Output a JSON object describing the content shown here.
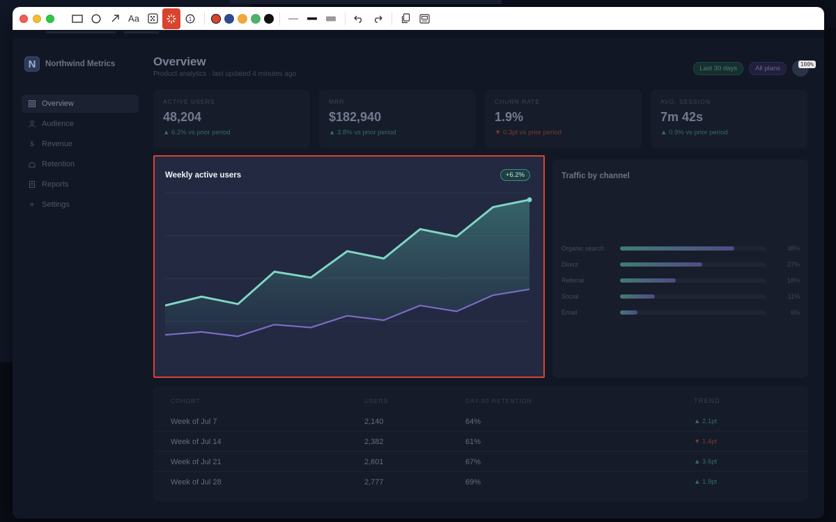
{
  "toolbar": {
    "colors": [
      "#d9442f",
      "#2f4a8c",
      "#f0a63a",
      "#4fb06b",
      "#111111"
    ],
    "zoom": "100%"
  },
  "app": {
    "brand": "Northwind Metrics",
    "nav": [
      {
        "label": "Overview",
        "icon": "grid-icon",
        "active": true
      },
      {
        "label": "Audience",
        "icon": "user-icon",
        "active": false
      },
      {
        "label": "Revenue",
        "icon": "dollar-icon",
        "active": false
      },
      {
        "label": "Retention",
        "icon": "retention-icon",
        "active": false
      },
      {
        "label": "Reports",
        "icon": "document-icon",
        "active": false
      },
      {
        "label": "Settings",
        "icon": "gear-icon",
        "active": false
      }
    ],
    "title": "Overview",
    "subtitle": "Product analytics · last updated 4 minutes ago",
    "range_pill": "Last 30 days",
    "plan_pill": "All plans",
    "kpis": [
      {
        "label": "ACTIVE USERS",
        "value": "48,204",
        "delta": "▲ 6.2% vs prior period",
        "dir": "up"
      },
      {
        "label": "MRR",
        "value": "$182,940",
        "delta": "▲ 3.8% vs prior period",
        "dir": "up"
      },
      {
        "label": "CHURN RATE",
        "value": "1.9%",
        "delta": "▼ 0.3pt vs prior period",
        "dir": "down"
      },
      {
        "label": "AVG. SESSION",
        "value": "7m 42s",
        "delta": "▲ 0.9% vs prior period",
        "dir": "up"
      }
    ],
    "chart": {
      "title": "Weekly active users",
      "badge": "+6.2%"
    },
    "traffic": {
      "title": "Traffic by channel",
      "channels": [
        {
          "name": "Organic search",
          "pct": "38%",
          "value": 0.78
        },
        {
          "name": "Direct",
          "pct": "27%",
          "value": 0.56
        },
        {
          "name": "Referral",
          "pct": "18%",
          "value": 0.38
        },
        {
          "name": "Social",
          "pct": "11%",
          "value": 0.24
        },
        {
          "name": "Email",
          "pct": "6%",
          "value": 0.12
        }
      ]
    },
    "cohort": {
      "headers": [
        "COHORT",
        "USERS",
        "DAY-30 RETENTION",
        "TREND"
      ],
      "rows": [
        {
          "cohort": "Week of Jul 7",
          "users": "2,140",
          "retention": "64%",
          "trend": "▲ 2.1pt",
          "dir": "up"
        },
        {
          "cohort": "Week of Jul 14",
          "users": "2,382",
          "retention": "61%",
          "trend": "▼ 1.4pt",
          "dir": "down"
        },
        {
          "cohort": "Week of Jul 21",
          "users": "2,601",
          "retention": "67%",
          "trend": "▲ 3.6pt",
          "dir": "up"
        },
        {
          "cohort": "Week of Jul 28",
          "users": "2,777",
          "retention": "69%",
          "trend": "▲ 1.9pt",
          "dir": "up"
        }
      ]
    }
  },
  "chart_data": {
    "type": "area",
    "title": "Weekly active users",
    "x": [
      1,
      2,
      3,
      4,
      5,
      6,
      7,
      8,
      9,
      10,
      11
    ],
    "ylim": [
      0,
      100
    ],
    "grid": true,
    "series": [
      {
        "values": [
          28,
          34,
          29,
          51,
          47,
          65,
          60,
          80,
          75,
          95,
          100
        ],
        "color": "#7fd6c4"
      },
      {
        "values": [
          8,
          10,
          7,
          15,
          13,
          21,
          18,
          28,
          24,
          35,
          39
        ],
        "color": "#7a6cc4"
      }
    ]
  }
}
